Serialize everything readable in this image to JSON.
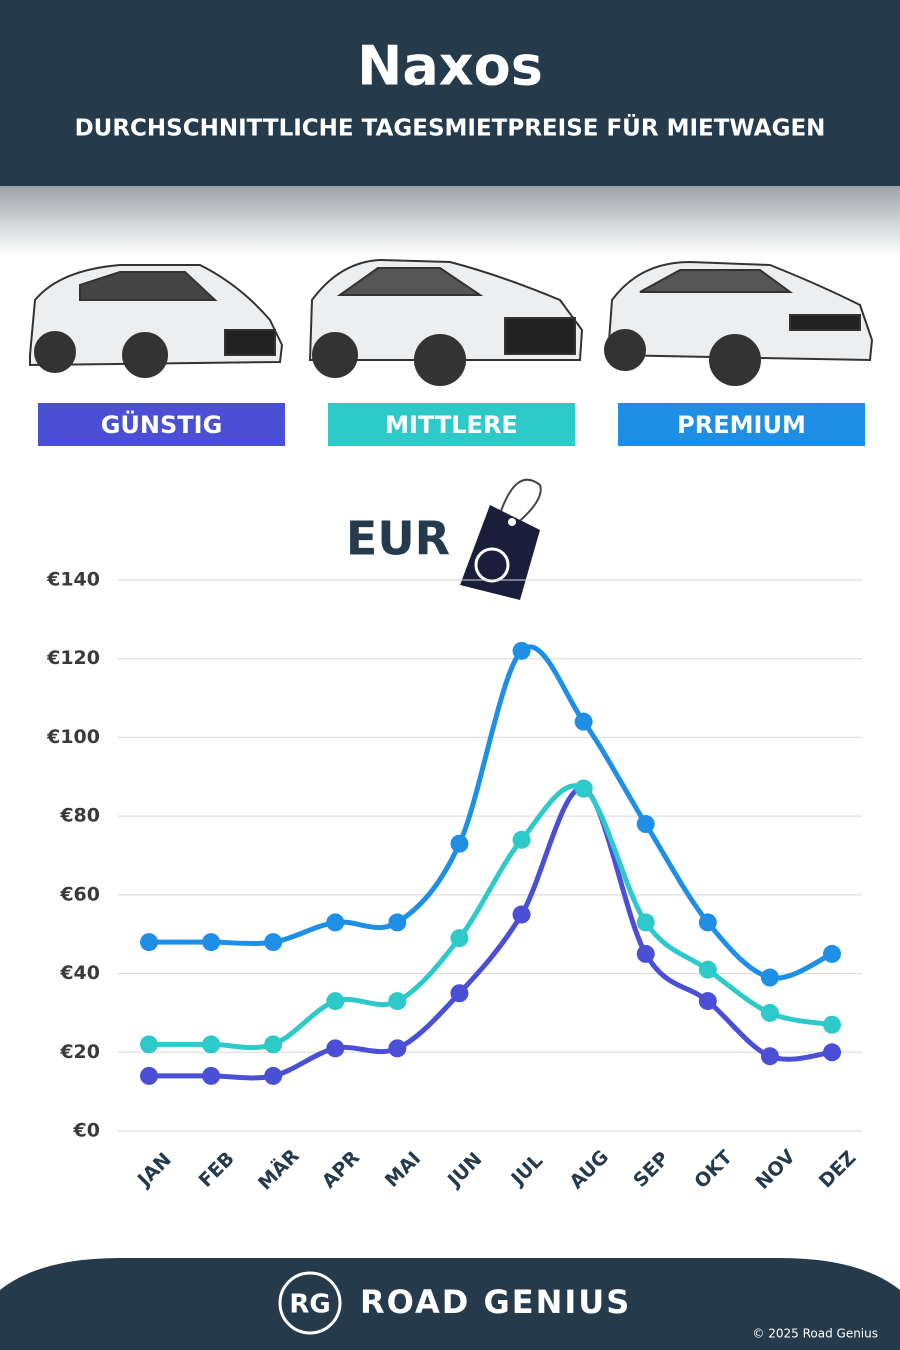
{
  "header": {
    "title": "Naxos",
    "subtitle": "DURCHSCHNITTLICHE TAGESMIETPREISE FÜR MIETWAGEN"
  },
  "chart_data": {
    "type": "line",
    "unit_label": "EUR",
    "categories": [
      "JAN",
      "FEB",
      "MÄR",
      "APR",
      "MAI",
      "JUN",
      "JUL",
      "AUG",
      "SEP",
      "OKT",
      "NOV",
      "DEZ"
    ],
    "series": [
      {
        "name": "GÜNSTIG",
        "color": "#4a4fd6",
        "values": [
          14,
          14,
          14,
          21,
          21,
          35,
          55,
          87,
          45,
          33,
          19,
          20
        ]
      },
      {
        "name": "MITTLERE",
        "color": "#2ec9c9",
        "values": [
          22,
          22,
          22,
          33,
          33,
          49,
          74,
          87,
          53,
          41,
          30,
          27
        ]
      },
      {
        "name": "PREMIUM",
        "color": "#1f8fe6",
        "values": [
          48,
          48,
          48,
          53,
          53,
          73,
          122,
          104,
          78,
          53,
          39,
          45
        ]
      }
    ],
    "ylim": [
      0,
      140
    ],
    "yticks": [
      {
        "value": 0,
        "label": "€0"
      },
      {
        "value": 20,
        "label": "€20"
      },
      {
        "value": 40,
        "label": "€40"
      },
      {
        "value": 60,
        "label": "€60"
      },
      {
        "value": 80,
        "label": "€80"
      },
      {
        "value": 100,
        "label": "€100"
      },
      {
        "value": 120,
        "label": "€120"
      },
      {
        "value": 140,
        "label": "€140"
      }
    ],
    "grid": true
  },
  "footer": {
    "logo": "RG",
    "brand": "ROAD GENIUS",
    "copyright": "© 2025 Road Genius"
  }
}
